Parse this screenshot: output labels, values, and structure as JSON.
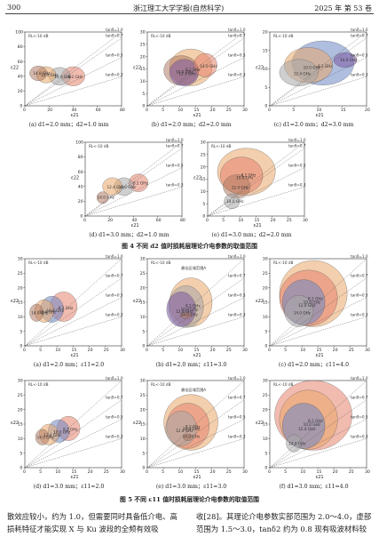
{
  "header": {
    "page_number": "300",
    "journal": "浙江理工大学学报(自然科学)",
    "year_volume": "2025 年  第 53 卷"
  },
  "fig4": {
    "caption": "图 4  不同 d2 值时损耗层理论介电参数的取值范围",
    "panels": [
      {
        "caption": "(a) d1=2.0 mm；d2=1.0 mm",
        "xmax": 80,
        "xticks": [
          "0",
          "20",
          "40",
          "60",
          "80"
        ],
        "ymax": 100,
        "yticks": [
          "0",
          "20",
          "40",
          "60",
          "80",
          "100"
        ]
      },
      {
        "caption": "(b) d1=2.0 mm；d2=2.0 mm",
        "xmax": 30,
        "xticks": [
          "0",
          "5",
          "10",
          "15",
          "20",
          "25",
          "30"
        ],
        "ymax": 30,
        "yticks": [
          "0",
          "5",
          "10",
          "15",
          "20",
          "25",
          "30"
        ]
      },
      {
        "caption": "(c) d1=2.0 mm；d2=3.0 mm",
        "xmax": 20,
        "xticks": [
          "0",
          "5",
          "10",
          "15",
          "20"
        ],
        "ymax": 20,
        "yticks": [
          "0",
          "5",
          "10",
          "15",
          "20"
        ]
      },
      {
        "caption": "(d) d1=3.0 mm；d2=1.0 mm",
        "xmax": 80,
        "xticks": [
          "0",
          "20",
          "40",
          "60",
          "80"
        ],
        "ymax": 100,
        "yticks": [
          "0",
          "20",
          "40",
          "60",
          "80",
          "100"
        ]
      },
      {
        "caption": "(e) d1=3.0 mm；d2=2.0 mm",
        "xmax": 30,
        "xticks": [
          "0",
          "5",
          "10",
          "15",
          "20",
          "25",
          "30"
        ],
        "ymax": 30,
        "yticks": [
          "0",
          "5",
          "10",
          "15",
          "20",
          "25",
          "30"
        ]
      }
    ]
  },
  "fig5": {
    "caption": "图 5  不同 ε11 值时损耗层理论介电参数的取值范围",
    "panels": [
      {
        "caption": "(a) d1=2.0 mm；ε11=2.0",
        "xmax": 30,
        "xticks": [
          "0",
          "5",
          "10",
          "15",
          "20",
          "25",
          "30"
        ],
        "ymax": 30,
        "yticks": [
          "0",
          "5",
          "10",
          "15",
          "20",
          "25",
          "30"
        ]
      },
      {
        "caption": "(b) d1=2.0 mm；ε11=3.0",
        "xmax": 30,
        "xticks": [
          "0",
          "5",
          "10",
          "15",
          "20",
          "25",
          "30"
        ],
        "ymax": 30,
        "yticks": [
          "0",
          "5",
          "10",
          "15",
          "20",
          "25",
          "30"
        ]
      },
      {
        "caption": "(c) d1=2.0 mm；ε11=4.0",
        "xmax": 30,
        "xticks": [
          "0",
          "5",
          "10",
          "15",
          "20",
          "25",
          "30"
        ],
        "ymax": 30,
        "yticks": [
          "0",
          "5",
          "10",
          "15",
          "20",
          "25",
          "30"
        ]
      },
      {
        "caption": "(d) d1=3.0 mm；ε11=2.0",
        "xmax": 30,
        "xticks": [
          "0",
          "5",
          "10",
          "15",
          "20",
          "25",
          "30"
        ],
        "ymax": 30,
        "yticks": [
          "0",
          "5",
          "10",
          "15",
          "20",
          "25",
          "30"
        ]
      },
      {
        "caption": "(e) d1=3.0 mm；ε11=3.0",
        "xmax": 30,
        "xticks": [
          "0",
          "5",
          "10",
          "15",
          "20",
          "25",
          "30"
        ],
        "ymax": 30,
        "yticks": [
          "0",
          "5",
          "10",
          "15",
          "20",
          "25",
          "30"
        ]
      },
      {
        "caption": "(f) d1=3.0 mm；ε11=4.0",
        "xmax": 30,
        "xticks": [
          "0",
          "5",
          "10",
          "15",
          "20",
          "25",
          "30"
        ],
        "ymax": 30,
        "yticks": [
          "0",
          "5",
          "10",
          "15",
          "20",
          "25",
          "30"
        ]
      }
    ]
  },
  "labels": {
    "xlabel": "ε21",
    "ylabel": "ε22",
    "legend_rl": "RL<-10 dB",
    "freq_labels": [
      "8.2 GHz",
      "10.0 GHz",
      "12.4 GHz",
      "14.0 GHz",
      "16.0 GHz",
      "18.0 GHz"
    ],
    "tand_labels": [
      "tanδ=1.0",
      "tanδ=0.7",
      "tanδ=0.5",
      "tanδ=0.3"
    ],
    "optimal_region": "最佳区域范围A"
  },
  "body": {
    "left": "散效应较小，约为 1.0，但需要同时具备低介电、高损耗特征才能实现 X 与 Ku 波段的全频有效吸",
    "right": "收[28]。其理论介电参数实部范围为 2.0～4.0，虚部范围为 1.5～3.0，tanδ2 约为 0.8 现有吸波材料较"
  },
  "colors": {
    "f8": "#e5836d",
    "f10": "#a8a8a8",
    "f12": "#7b5aa0",
    "f14": "#6d86c4",
    "f16": "#e9a86a",
    "f18": "#b07b64"
  }
}
